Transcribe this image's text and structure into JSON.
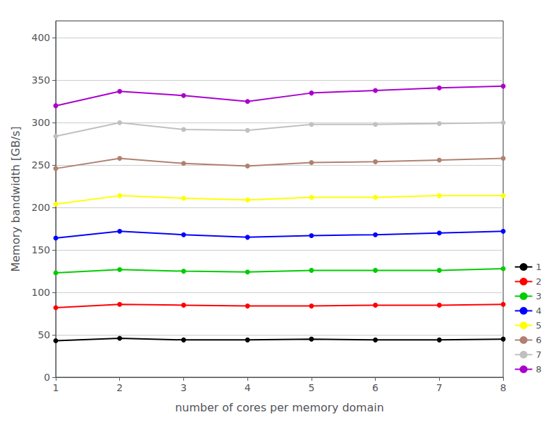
{
  "chart_data": {
    "type": "line",
    "x": [
      1,
      2,
      3,
      4,
      5,
      6,
      7,
      8
    ],
    "series": [
      {
        "name": "1",
        "color": "#000000",
        "values": [
          43,
          46,
          44,
          44,
          45,
          44,
          44,
          45
        ]
      },
      {
        "name": "2",
        "color": "#ff0000",
        "values": [
          82,
          86,
          85,
          84,
          84,
          85,
          85,
          86
        ]
      },
      {
        "name": "3",
        "color": "#00cc00",
        "values": [
          123,
          127,
          125,
          124,
          126,
          126,
          126,
          128
        ]
      },
      {
        "name": "4",
        "color": "#0000ff",
        "values": [
          164,
          172,
          168,
          165,
          167,
          168,
          170,
          172
        ]
      },
      {
        "name": "5",
        "color": "#ffff00",
        "values": [
          204,
          214,
          211,
          209,
          212,
          212,
          214,
          214
        ]
      },
      {
        "name": "6",
        "color": "#b08070",
        "values": [
          246,
          258,
          252,
          249,
          253,
          254,
          256,
          258
        ]
      },
      {
        "name": "7",
        "color": "#c0c0c0",
        "values": [
          284,
          300,
          292,
          291,
          298,
          298,
          299,
          300
        ]
      },
      {
        "name": "8",
        "color": "#aa00cc",
        "values": [
          320,
          337,
          332,
          325,
          335,
          338,
          341,
          343
        ]
      }
    ],
    "xlabel": "number of cores per memory domain",
    "ylabel": "Memory bandwidth [GB/s]",
    "xlim": [
      1,
      8
    ],
    "ylim": [
      0,
      420
    ],
    "xticks": [
      1,
      2,
      3,
      4,
      5,
      6,
      7,
      8
    ],
    "yticks": [
      0,
      50,
      100,
      150,
      200,
      250,
      300,
      350,
      400
    ],
    "marker": "circle",
    "grid": true,
    "legend": "lower right"
  }
}
